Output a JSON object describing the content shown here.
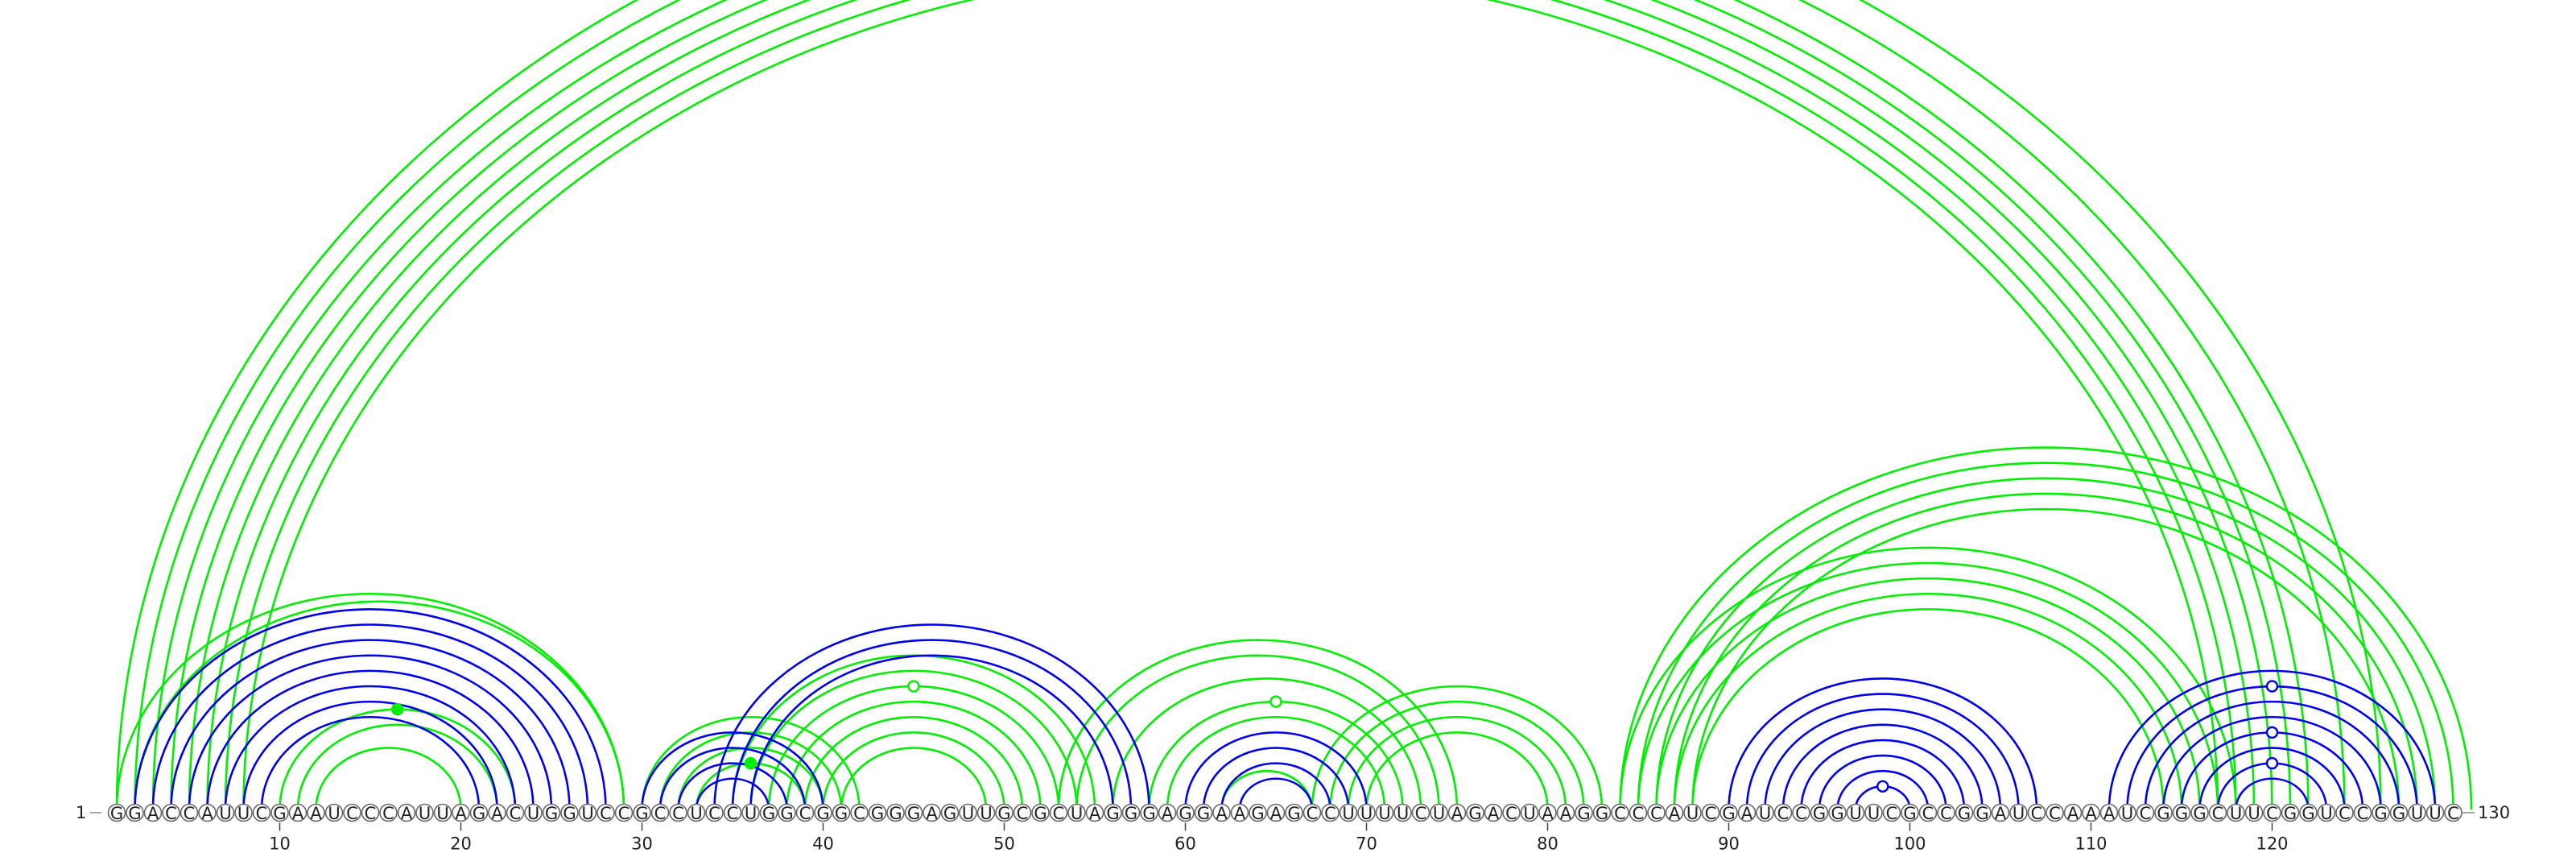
{
  "sequence": "GGACCAUUCGAAUCCCAUUAGACUGGUCCGCCUCCUGGCGGCGGGAGUUGCGCUAGGGAGGAAGAGCCUUUUCUAGACUAAGGCCCAUCGAUCCGGUUCGCCGGAUCCAAAUCGGGCUUCGGUCCGGUUC",
  "labels": {
    "start_index": "1",
    "end_index": "130"
  },
  "ticks": [
    "10",
    "20",
    "30",
    "40",
    "50",
    "60",
    "70",
    "80",
    "90",
    "100",
    "110",
    "120"
  ],
  "colors": {
    "pair_type_a": "#0000ee",
    "pair_type_b": "#00ee00",
    "backbone": "#888888"
  },
  "pairs": {
    "pair_type_a": [
      [
        2,
        28
      ],
      [
        3,
        27
      ],
      [
        4,
        26
      ],
      [
        5,
        25
      ],
      [
        6,
        24
      ],
      [
        7,
        23
      ],
      [
        8,
        22
      ],
      [
        9,
        21
      ],
      [
        30,
        40
      ],
      [
        31,
        39
      ],
      [
        32,
        38
      ],
      [
        33,
        37
      ],
      [
        34,
        58
      ],
      [
        35,
        57
      ],
      [
        36,
        56
      ],
      [
        60,
        70
      ],
      [
        61,
        69
      ],
      [
        62,
        68
      ],
      [
        63,
        67
      ],
      [
        90,
        107
      ],
      [
        91,
        106
      ],
      [
        92,
        105
      ],
      [
        93,
        104
      ],
      [
        94,
        103
      ],
      [
        95,
        102
      ],
      [
        96,
        101
      ],
      [
        97,
        100
      ],
      [
        111,
        129
      ],
      [
        112,
        128
      ],
      [
        113,
        127
      ],
      [
        114,
        126
      ],
      [
        115,
        125
      ],
      [
        116,
        124
      ],
      [
        117,
        123
      ],
      [
        118,
        122
      ]
    ],
    "pair_type_b": [
      [
        1,
        126
      ],
      [
        2,
        124
      ],
      [
        3,
        122
      ],
      [
        4,
        121
      ],
      [
        5,
        120
      ],
      [
        6,
        119
      ],
      [
        7,
        118
      ],
      [
        8,
        117
      ],
      [
        1,
        29
      ],
      [
        2,
        29
      ],
      [
        10,
        23
      ],
      [
        11,
        22
      ],
      [
        12,
        20
      ],
      [
        30,
        42
      ],
      [
        31,
        41
      ],
      [
        32,
        40
      ],
      [
        33,
        39
      ],
      [
        35,
        55
      ],
      [
        36,
        54
      ],
      [
        37,
        53
      ],
      [
        38,
        52
      ],
      [
        39,
        51
      ],
      [
        40,
        50
      ],
      [
        41,
        49
      ],
      [
        53,
        75
      ],
      [
        54,
        74
      ],
      [
        56,
        73
      ],
      [
        58,
        72
      ],
      [
        59,
        71
      ],
      [
        62,
        67
      ],
      [
        67,
        83
      ],
      [
        68,
        82
      ],
      [
        69,
        81
      ],
      [
        70,
        80
      ],
      [
        84,
        131
      ],
      [
        85,
        130
      ],
      [
        86,
        129
      ],
      [
        87,
        128
      ],
      [
        88,
        127
      ],
      [
        84,
        118
      ],
      [
        85,
        117
      ],
      [
        86,
        116
      ],
      [
        87,
        115
      ],
      [
        88,
        114
      ]
    ]
  },
  "highlight_points": [
    {
      "i": 1,
      "j": 126,
      "type": "pair_type_b",
      "style": "open"
    },
    {
      "i": 10,
      "j": 23,
      "type": "pair_type_b",
      "style": "filled"
    },
    {
      "i": 33,
      "j": 39,
      "type": "pair_type_b",
      "style": "filled"
    },
    {
      "i": 37,
      "j": 53,
      "type": "pair_type_b",
      "style": "open"
    },
    {
      "i": 58,
      "j": 72,
      "type": "pair_type_b",
      "style": "open"
    },
    {
      "i": 97,
      "j": 100,
      "type": "pair_type_a",
      "style": "open"
    },
    {
      "i": 112,
      "j": 128,
      "type": "pair_type_a",
      "style": "open"
    },
    {
      "i": 115,
      "j": 125,
      "type": "pair_type_a",
      "style": "open"
    },
    {
      "i": 117,
      "j": 123,
      "type": "pair_type_a",
      "style": "open"
    }
  ]
}
